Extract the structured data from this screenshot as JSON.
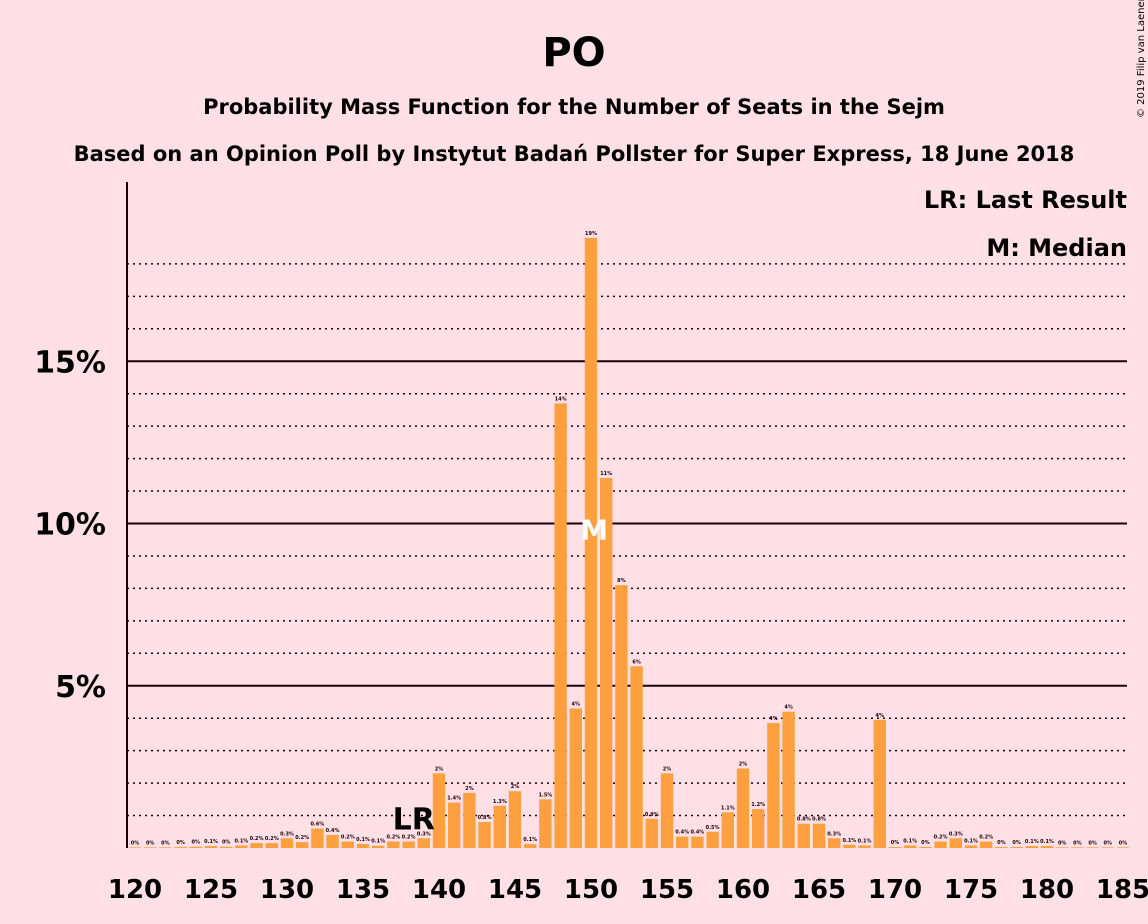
{
  "chart_data": {
    "type": "bar",
    "title": "PO",
    "subtitle": "Probability Mass Function for the Number of Seats in the Sejm",
    "subtitle2": "Based on an Opinion Poll by Instytut Badań Pollster for Super Express, 18 June 2018",
    "copyright": "© 2019 Filip van Laenen",
    "legend": {
      "lr": "LR: Last Result",
      "median": "M: Median",
      "placement": "top-right"
    },
    "markers": {
      "last_result_label": "LR",
      "last_result_seat": 138,
      "median_label": "M",
      "median_seat": 150
    },
    "xlabel": "",
    "ylabel": "",
    "xlim": [
      120,
      185
    ],
    "ylim": [
      0,
      20
    ],
    "x_ticks": [
      120,
      125,
      130,
      135,
      140,
      145,
      150,
      155,
      160,
      165,
      170,
      175,
      180,
      185
    ],
    "y_ticks": [
      {
        "value": 5,
        "label": "5%"
      },
      {
        "value": 10,
        "label": "10%"
      },
      {
        "value": 15,
        "label": "15%"
      }
    ],
    "y_minor_ticks": [
      1,
      2,
      3,
      4,
      6,
      7,
      8,
      9,
      11,
      12,
      13,
      14,
      16,
      17,
      18
    ],
    "bar_color": "#ffa040",
    "bars": [
      {
        "x": 120,
        "value": 0.02,
        "label": "0%"
      },
      {
        "x": 121,
        "value": 0.02,
        "label": "0%"
      },
      {
        "x": 122,
        "value": 0.02,
        "label": "0%"
      },
      {
        "x": 123,
        "value": 0.03,
        "label": "0%"
      },
      {
        "x": 124,
        "value": 0.04,
        "label": "0%"
      },
      {
        "x": 125,
        "value": 0.06,
        "label": "0.1%"
      },
      {
        "x": 126,
        "value": 0.04,
        "label": "0%"
      },
      {
        "x": 127,
        "value": 0.08,
        "label": "0.1%"
      },
      {
        "x": 128,
        "value": 0.15,
        "label": "0.2%"
      },
      {
        "x": 129,
        "value": 0.15,
        "label": "0.2%"
      },
      {
        "x": 130,
        "value": 0.3,
        "label": "0.3%"
      },
      {
        "x": 131,
        "value": 0.18,
        "label": "0.2%"
      },
      {
        "x": 132,
        "value": 0.6,
        "label": "0.6%"
      },
      {
        "x": 133,
        "value": 0.4,
        "label": "0.4%"
      },
      {
        "x": 134,
        "value": 0.2,
        "label": "0.2%"
      },
      {
        "x": 135,
        "value": 0.12,
        "label": "0.1%"
      },
      {
        "x": 136,
        "value": 0.07,
        "label": "0.1%"
      },
      {
        "x": 137,
        "value": 0.2,
        "label": "0.2%"
      },
      {
        "x": 138,
        "value": 0.2,
        "label": "0.2%"
      },
      {
        "x": 139,
        "value": 0.3,
        "label": "0.3%"
      },
      {
        "x": 140,
        "value": 2.3,
        "label": "2%"
      },
      {
        "x": 141,
        "value": 1.4,
        "label": "1.4%"
      },
      {
        "x": 142,
        "value": 1.7,
        "label": "2%"
      },
      {
        "x": 143,
        "value": 0.8,
        "label": "0.8%"
      },
      {
        "x": 144,
        "value": 1.3,
        "label": "1.3%"
      },
      {
        "x": 145,
        "value": 1.75,
        "label": "2%"
      },
      {
        "x": 146,
        "value": 0.12,
        "label": "0.1%"
      },
      {
        "x": 147,
        "value": 1.5,
        "label": "1.5%"
      },
      {
        "x": 148,
        "value": 13.7,
        "label": "14%"
      },
      {
        "x": 149,
        "value": 4.3,
        "label": "4%"
      },
      {
        "x": 150,
        "value": 18.8,
        "label": "19%"
      },
      {
        "x": 151,
        "value": 11.4,
        "label": "11%"
      },
      {
        "x": 152,
        "value": 8.1,
        "label": "8%"
      },
      {
        "x": 153,
        "value": 5.6,
        "label": "6%"
      },
      {
        "x": 154,
        "value": 0.9,
        "label": "0.9%"
      },
      {
        "x": 155,
        "value": 2.3,
        "label": "2%"
      },
      {
        "x": 156,
        "value": 0.35,
        "label": "0.4%"
      },
      {
        "x": 157,
        "value": 0.35,
        "label": "0.4%"
      },
      {
        "x": 158,
        "value": 0.5,
        "label": "0.5%"
      },
      {
        "x": 159,
        "value": 1.1,
        "label": "1.1%"
      },
      {
        "x": 160,
        "value": 2.45,
        "label": "2%"
      },
      {
        "x": 161,
        "value": 1.2,
        "label": "1.2%"
      },
      {
        "x": 162,
        "value": 3.85,
        "label": "4%"
      },
      {
        "x": 163,
        "value": 4.2,
        "label": "4%"
      },
      {
        "x": 164,
        "value": 0.75,
        "label": "0.8%"
      },
      {
        "x": 165,
        "value": 0.75,
        "label": "0.8%"
      },
      {
        "x": 166,
        "value": 0.3,
        "label": "0.3%"
      },
      {
        "x": 167,
        "value": 0.1,
        "label": "0.1%"
      },
      {
        "x": 168,
        "value": 0.08,
        "label": "0.1%"
      },
      {
        "x": 169,
        "value": 3.95,
        "label": "4%"
      },
      {
        "x": 170,
        "value": 0.03,
        "label": "0%"
      },
      {
        "x": 171,
        "value": 0.08,
        "label": "0.1%"
      },
      {
        "x": 172,
        "value": 0.03,
        "label": "0%"
      },
      {
        "x": 173,
        "value": 0.2,
        "label": "0.2%"
      },
      {
        "x": 174,
        "value": 0.3,
        "label": "0.3%"
      },
      {
        "x": 175,
        "value": 0.08,
        "label": "0.1%"
      },
      {
        "x": 176,
        "value": 0.2,
        "label": "0.2%"
      },
      {
        "x": 177,
        "value": 0.03,
        "label": "0%"
      },
      {
        "x": 178,
        "value": 0.03,
        "label": "0%"
      },
      {
        "x": 179,
        "value": 0.06,
        "label": "0.1%"
      },
      {
        "x": 180,
        "value": 0.06,
        "label": "0.1%"
      },
      {
        "x": 181,
        "value": 0.02,
        "label": "0%"
      },
      {
        "x": 182,
        "value": 0.02,
        "label": "0%"
      },
      {
        "x": 183,
        "value": 0.02,
        "label": "0%"
      },
      {
        "x": 184,
        "value": 0.02,
        "label": "0%"
      },
      {
        "x": 185,
        "value": 0.02,
        "label": "0%"
      }
    ]
  }
}
